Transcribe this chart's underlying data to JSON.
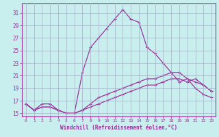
{
  "xlabel": "Windchill (Refroidissement éolien,°C)",
  "bg_color": "#c8eeee",
  "grid_color": "#aaaacc",
  "line_color": "#993399",
  "xlim": [
    -0.5,
    23.5
  ],
  "ylim": [
    14.5,
    32.5
  ],
  "xticks": [
    0,
    1,
    2,
    3,
    4,
    5,
    6,
    7,
    8,
    9,
    10,
    11,
    12,
    13,
    14,
    15,
    16,
    17,
    18,
    19,
    20,
    21,
    22,
    23
  ],
  "yticks": [
    15,
    17,
    19,
    21,
    23,
    25,
    27,
    29,
    31
  ],
  "series1_x": [
    0,
    1,
    2,
    3,
    4,
    5,
    6,
    7,
    8,
    9,
    10,
    11,
    12,
    13,
    14,
    15,
    16,
    17,
    18,
    19,
    20,
    21,
    22,
    23
  ],
  "series1_y": [
    16.5,
    15.5,
    16.0,
    16.0,
    15.5,
    15.0,
    15.0,
    21.5,
    25.5,
    27.0,
    28.5,
    30.0,
    31.5,
    30.0,
    29.5,
    25.5,
    24.5,
    23.0,
    21.5,
    20.0,
    20.5,
    19.0,
    18.0,
    17.5
  ],
  "series2_x": [
    0,
    1,
    2,
    3,
    4,
    5,
    6,
    7,
    8,
    9,
    10,
    11,
    12,
    13,
    14,
    15,
    16,
    17,
    18,
    19,
    20,
    21,
    22,
    23
  ],
  "series2_y": [
    16.5,
    15.5,
    16.0,
    16.0,
    15.5,
    15.0,
    15.0,
    15.5,
    16.0,
    16.5,
    17.0,
    17.5,
    18.0,
    18.5,
    19.0,
    19.5,
    19.5,
    20.0,
    20.5,
    20.5,
    20.0,
    20.5,
    19.5,
    18.5
  ],
  "series3_x": [
    0,
    1,
    2,
    3,
    4,
    5,
    6,
    7,
    8,
    9,
    10,
    11,
    12,
    13,
    14,
    15,
    16,
    17,
    18,
    19,
    20,
    21,
    22,
    23
  ],
  "series3_y": [
    16.5,
    15.5,
    16.5,
    16.5,
    15.5,
    15.0,
    15.0,
    15.5,
    16.5,
    17.5,
    18.0,
    18.5,
    19.0,
    19.5,
    20.0,
    20.5,
    20.5,
    21.0,
    21.5,
    21.5,
    20.5,
    20.0,
    19.5,
    18.5
  ]
}
